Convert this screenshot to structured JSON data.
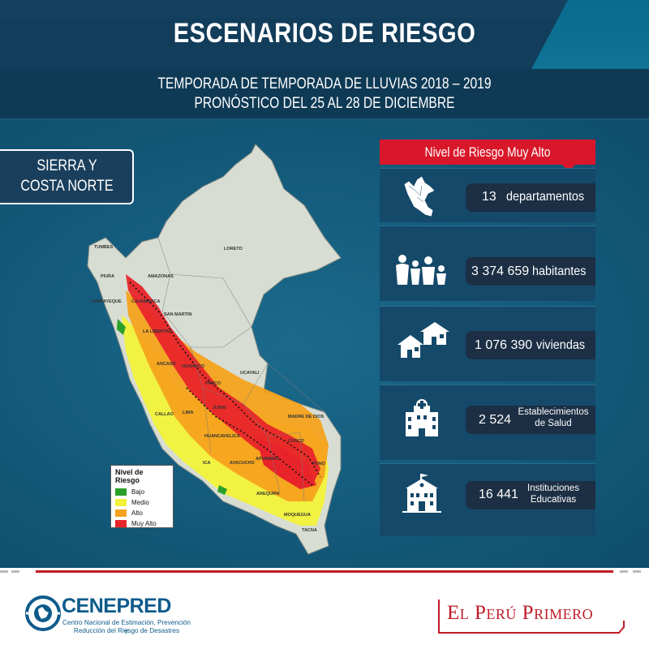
{
  "header": {
    "title": "ESCENARIOS DE RIESGO",
    "subtitle_line1": "TEMPORADA DE TEMPORADA DE LLUVIAS 2018 – 2019",
    "subtitle_line2": "PRONÓSTICO DEL 25 AL 28 DE DICIEMBRE"
  },
  "region": {
    "line1": "SIERRA Y",
    "line2": "COSTA NORTE"
  },
  "map": {
    "labels": [
      "TUMBES",
      "PIURA",
      "AMAZONAS",
      "LORETO",
      "LAMBAYEQUE",
      "CAJAMARCA",
      "SAN MARTIN",
      "LA LIBERTAD",
      "ANCASH",
      "HUANUCO",
      "UCAYALI",
      "PASCO",
      "CALLAO",
      "LIMA",
      "JUNIN",
      "MADRE DE DIOS",
      "HUANCAVELICA",
      "CUSCO",
      "APURIMAC",
      "ICA",
      "AYACUCHO",
      "PUNO",
      "AREQUIPA",
      "MOQUEGUA",
      "TACNA"
    ],
    "legend": {
      "title": "Nivel de Riesgo",
      "items": [
        {
          "label": "Bajo",
          "color": "#2aa02a"
        },
        {
          "label": "Medio",
          "color": "#f2f23a"
        },
        {
          "label": "Alto",
          "color": "#f5a21e"
        },
        {
          "label": "Muy Alto",
          "color": "#e8242a"
        }
      ]
    }
  },
  "panel": {
    "header": "Nivel de Riesgo Muy Alto",
    "stats": [
      {
        "icon": "peru-map-icon",
        "number": "13",
        "label": "departamentos"
      },
      {
        "icon": "people-icon",
        "number": "3 374 659",
        "label": "habitantes"
      },
      {
        "icon": "houses-icon",
        "number": "1 076 390",
        "label": "viviendas"
      },
      {
        "icon": "hospital-icon",
        "number": "2 524",
        "label_line1": "Establecimientos",
        "label_line2": "de Salud"
      },
      {
        "icon": "school-icon",
        "number": "16 441",
        "label_line1": "Instituciones",
        "label_line2": "Educativas"
      }
    ]
  },
  "footer": {
    "cenepred_name": "CENEPRED",
    "cenepred_sub1": "Centro Nacional de Estimación, Prevención y",
    "cenepred_sub2": "Reducción del Riesgo de Desastres",
    "peru_slogan": "El Perú Primero"
  },
  "colors": {
    "brand_red": "#d9172a",
    "panel_dark": "#15496a",
    "header_blue": "#0a6b8d"
  }
}
